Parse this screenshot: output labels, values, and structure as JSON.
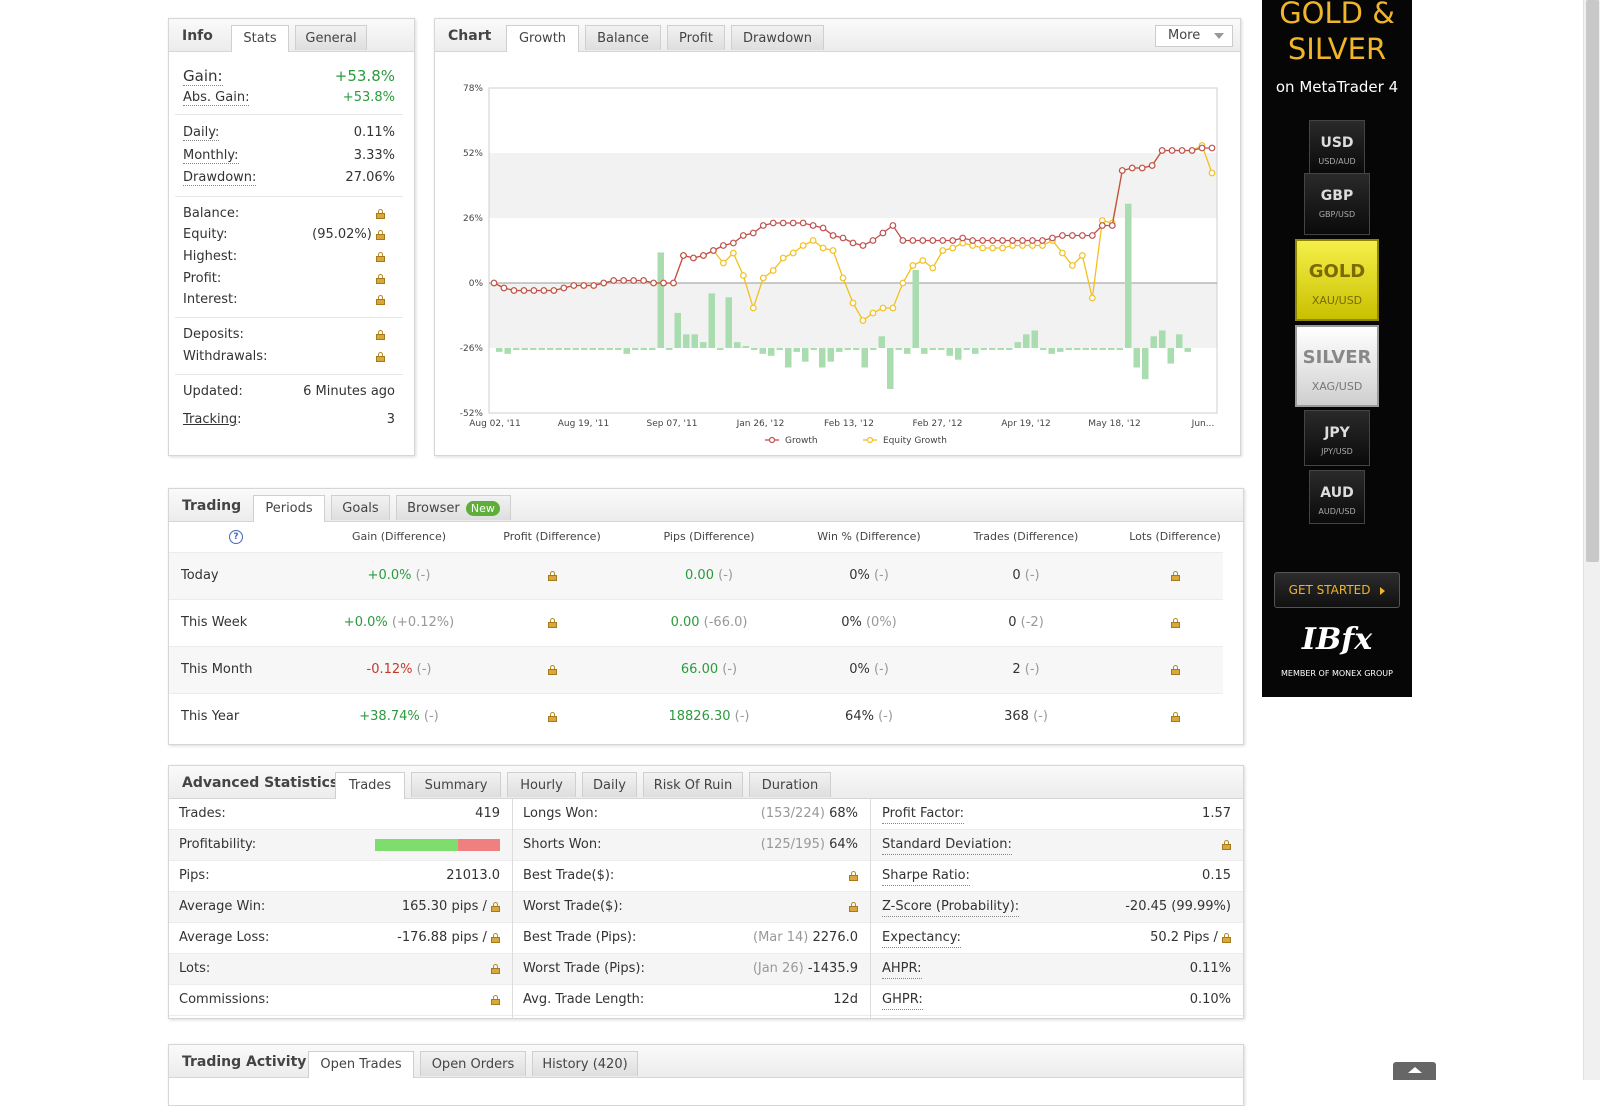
{
  "info_panel": {
    "title": "Info",
    "tabs": [
      "Stats",
      "General"
    ],
    "gain_label": "Gain:",
    "gain_value": "+53.8%",
    "abs_gain_label": "Abs. Gain:",
    "abs_gain_value": "+53.8%",
    "daily_label": "Daily:",
    "daily_value": "0.11%",
    "monthly_label": "Monthly:",
    "monthly_value": "3.33%",
    "drawdown_label": "Drawdown:",
    "drawdown_value": "27.06%",
    "balance_label": "Balance:",
    "equity_label": "Equity:",
    "equity_value": "(95.02%)",
    "highest_label": "Highest:",
    "profit_label": "Profit:",
    "interest_label": "Interest:",
    "deposits_label": "Deposits:",
    "withdrawals_label": "Withdrawals:",
    "updated_label": "Updated:",
    "updated_value": "6 Minutes ago",
    "tracking_label": "Tracking",
    "tracking_colon": ":",
    "tracking_value": "3"
  },
  "chart_panel": {
    "title": "Chart",
    "tabs": [
      "Growth",
      "Balance",
      "Profit",
      "Drawdown"
    ],
    "more_label": "More"
  },
  "chart_data": {
    "type": "line",
    "x_tick_labels": [
      "Aug 02, '11",
      "Aug 19, '11",
      "Sep 07, '11",
      "Jan 26, '12",
      "Feb 13, '12",
      "Feb 27, '12",
      "Apr 19, '12",
      "May 18, '12",
      "Jun..."
    ],
    "y_tick_labels": [
      "78%",
      "52%",
      "26%",
      "0%",
      "-26%",
      "-52%"
    ],
    "ylim": [
      -52,
      78
    ],
    "legend": [
      "Growth",
      "Equity Growth"
    ],
    "legend_position": "bottom",
    "colors": {
      "growth": "#c0504d",
      "equity": "#f2c01e",
      "bars": "#a9dcae"
    },
    "series": [
      {
        "name": "Growth",
        "values": [
          0,
          -2,
          -3,
          -3,
          -3,
          -3,
          -3,
          -2,
          -1,
          -1,
          -1,
          0,
          1,
          1,
          1,
          1,
          0,
          0,
          0,
          11,
          10,
          11,
          13,
          15,
          16,
          19,
          20,
          23,
          24,
          24,
          24,
          24,
          23,
          22,
          19,
          18,
          16,
          15,
          17,
          20,
          23,
          17,
          17,
          17,
          17,
          17,
          17,
          18,
          17,
          17,
          17,
          17,
          17,
          17,
          17,
          17,
          18,
          19,
          19,
          19,
          19,
          23,
          23,
          45,
          46,
          46,
          47,
          53,
          53,
          53,
          53,
          54,
          54
        ]
      },
      {
        "name": "Equity Growth",
        "values": [
          0,
          -2,
          -3,
          -3,
          -3,
          -3,
          -3,
          -2,
          -1,
          -1,
          -1,
          0,
          1,
          1,
          1,
          1,
          0,
          0,
          0,
          11,
          10,
          11,
          13,
          8,
          12,
          3,
          -10,
          2,
          5,
          10,
          12,
          15,
          17,
          14,
          13,
          2,
          -8,
          -15,
          -12,
          -10,
          -10,
          0,
          7,
          9,
          6,
          13,
          14,
          16,
          15,
          14,
          14,
          14,
          15,
          15,
          15,
          15,
          17,
          12,
          7,
          11,
          -6,
          25,
          24,
          45,
          46,
          46,
          47,
          53,
          53,
          53,
          53,
          55,
          44
        ]
      }
    ],
    "bars": [
      -2,
      -3,
      -1,
      -1,
      -1,
      -1,
      -1,
      -1,
      -1,
      -1,
      -1,
      -1,
      -1,
      -1,
      -1,
      -3,
      -1,
      -1,
      -1,
      49,
      -1,
      18,
      7,
      7,
      3,
      28,
      -1,
      26,
      3,
      1,
      -1,
      -3,
      -4,
      -1,
      -10,
      -2,
      -7,
      -1,
      -10,
      -7,
      -2,
      -1,
      -1,
      -10,
      -1,
      6,
      -21,
      -1,
      -3,
      40,
      -3,
      -1,
      -1,
      -4,
      -6,
      -1,
      -3,
      -1,
      -1,
      -1,
      -1,
      3,
      7,
      9,
      -1,
      -3,
      -2,
      -1,
      -1,
      -1,
      -1,
      -1,
      -1,
      -1,
      74,
      -10,
      -16,
      6,
      9,
      -8,
      7,
      -2,
      0,
      0
    ]
  },
  "trading_panel": {
    "title": "Trading",
    "tabs": [
      "Periods",
      "Goals",
      "Browser"
    ],
    "new_badge": "New",
    "help_icon_text": "?",
    "headers": [
      "Gain (Difference)",
      "Profit (Difference)",
      "Pips (Difference)",
      "Win % (Difference)",
      "Trades (Difference)",
      "Lots (Difference)"
    ],
    "rows": [
      {
        "period": "Today",
        "gain": "+0.0%",
        "gain_diff": "(-)",
        "gain_color": "green",
        "pips": "0.00",
        "pips_diff": "(-)",
        "win": "0%",
        "win_diff": "(-)",
        "trades": "0",
        "trades_diff": "(-)"
      },
      {
        "period": "This Week",
        "gain": "+0.0%",
        "gain_diff": "(+0.12%)",
        "gain_color": "green",
        "pips": "0.00",
        "pips_diff": "(-66.0)",
        "win": "0%",
        "win_diff": "(0%)",
        "trades": "0",
        "trades_diff": "(-2)"
      },
      {
        "period": "This Month",
        "gain": "-0.12%",
        "gain_diff": "(-)",
        "gain_color": "red",
        "pips": "66.00",
        "pips_diff": "(-)",
        "win": "0%",
        "win_diff": "(-)",
        "trades": "2",
        "trades_diff": "(-)"
      },
      {
        "period": "This Year",
        "gain": "+38.74%",
        "gain_diff": "(-)",
        "gain_color": "green",
        "pips": "18826.30",
        "pips_diff": "(-)",
        "win": "64%",
        "win_diff": "(-)",
        "trades": "368",
        "trades_diff": "(-)"
      }
    ]
  },
  "advanced_panel": {
    "title": "Advanced Statistics",
    "tabs": [
      "Trades",
      "Summary",
      "Hourly",
      "Daily",
      "Risk Of Ruin",
      "Duration"
    ],
    "profitability": {
      "win_fraction": 0.66
    },
    "col1": [
      {
        "label": "Trades:",
        "value": "419"
      },
      {
        "label": "Profitability:",
        "value": ""
      },
      {
        "label": "Pips:",
        "value": "21013.0"
      },
      {
        "label": "Average Win:",
        "value": "165.30 pips /"
      },
      {
        "label": "Average Loss:",
        "value": "-176.88 pips /"
      },
      {
        "label": "Lots:",
        "value": ""
      },
      {
        "label": "Commissions:",
        "value": ""
      }
    ],
    "col2": [
      {
        "label": "Longs Won:",
        "muted": "(153/224)",
        "value": "68%"
      },
      {
        "label": "Shorts Won:",
        "muted": "(125/195)",
        "value": "64%"
      },
      {
        "label": "Best Trade($):",
        "muted": "",
        "value": ""
      },
      {
        "label": "Worst Trade($):",
        "muted": "",
        "value": ""
      },
      {
        "label": "Best Trade (Pips):",
        "muted": "(Mar 14)",
        "value": "2276.0"
      },
      {
        "label": "Worst Trade (Pips):",
        "muted": "(Jan 26)",
        "value": "-1435.9"
      },
      {
        "label": "Avg. Trade Length:",
        "muted": "",
        "value": "12d"
      }
    ],
    "col3": [
      {
        "label": "Profit Factor:",
        "value": "1.57"
      },
      {
        "label": "Standard Deviation:",
        "value": ""
      },
      {
        "label": "Sharpe Ratio:",
        "value": "0.15"
      },
      {
        "label": "Z-Score (Probability):",
        "value": "-20.45 (99.99%)"
      },
      {
        "label": "Expectancy:",
        "value": "50.2 Pips /"
      },
      {
        "label": "AHPR:",
        "value": "0.11%"
      },
      {
        "label": "GHPR:",
        "value": "0.10%"
      }
    ]
  },
  "activity_panel": {
    "title": "Trading Activity",
    "tabs": [
      "Open Trades",
      "Open Orders",
      "History (420)"
    ]
  },
  "ad": {
    "headline1": "GOLD &",
    "headline2": "SILVER",
    "subline": "on MetaTrader 4",
    "chips": [
      {
        "code": "USD",
        "pair": "USD/AUD"
      },
      {
        "code": "GBP",
        "pair": "GBP/USD"
      },
      {
        "code": "GOLD",
        "pair": "XAU/USD"
      },
      {
        "code": "SILVER",
        "pair": "XAG/USD"
      },
      {
        "code": "JPY",
        "pair": "JPY/USD"
      },
      {
        "code": "AUD",
        "pair": "AUD/USD"
      }
    ],
    "cta": "GET STARTED",
    "brand": "IBfx",
    "brand_sub": "MEMBER OF MONEX GROUP"
  }
}
